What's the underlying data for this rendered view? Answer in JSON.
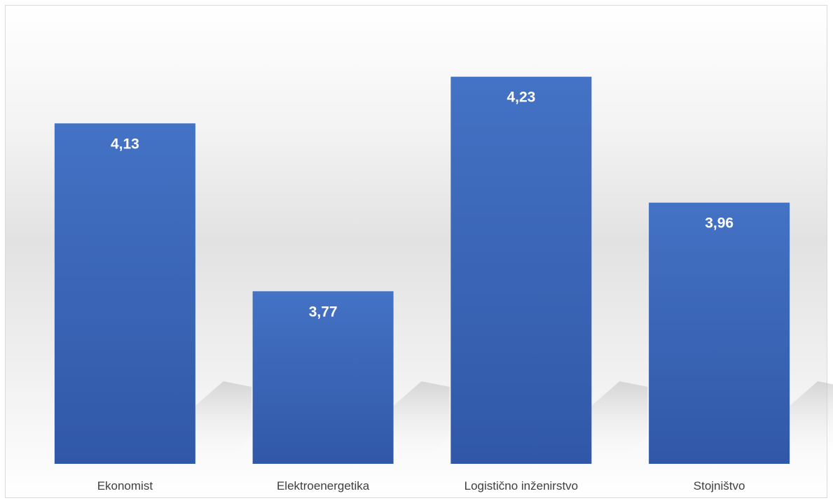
{
  "chart_data": {
    "type": "bar",
    "categories": [
      "Ekonomist",
      "Elektroenergetika",
      "Logistično inženirstvo",
      "Stojništvo"
    ],
    "values": [
      4.13,
      3.77,
      4.23,
      3.96
    ],
    "data_labels": [
      "4,13",
      "3,77",
      "4,23",
      "3,96"
    ],
    "title": "",
    "xlabel": "",
    "ylabel": "",
    "ylim": [
      3.4,
      4.3
    ],
    "grid": false,
    "legend": "none",
    "bar_color": "#4472C4",
    "bar_color_dark": "#3158A8"
  }
}
